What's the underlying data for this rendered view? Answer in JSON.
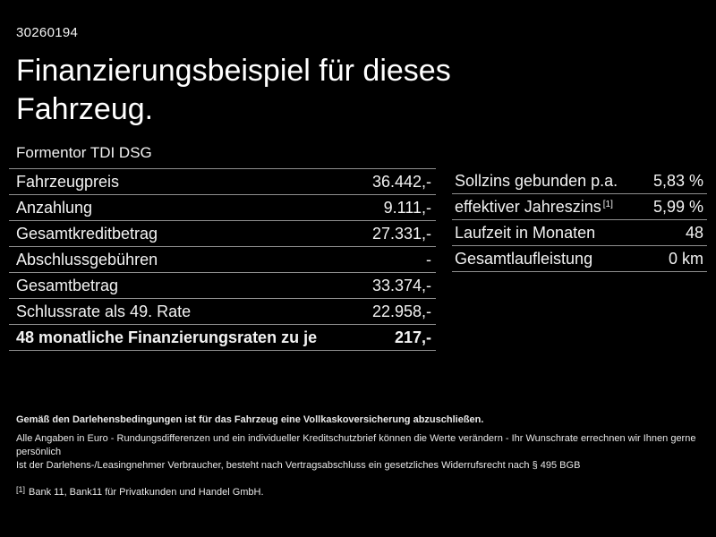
{
  "header": {
    "vehicle_id": "30260194",
    "title": "Finanzierungsbeispiel für dieses Fahrzeug.",
    "model": "Formentor TDI DSG"
  },
  "financing_table": {
    "rows": [
      {
        "label": "Fahrzeugpreis",
        "value": "36.442,-"
      },
      {
        "label": "Anzahlung",
        "value": "9.111,-"
      },
      {
        "label": "Gesamtkreditbetrag",
        "value": "27.331,-"
      },
      {
        "label": "Abschlussgebühren",
        "value": "-"
      },
      {
        "label": "Gesamtbetrag",
        "value": "33.374,-"
      },
      {
        "label": "Schlussrate als 49. Rate",
        "value": "22.958,-"
      },
      {
        "label": "48 monatliche Finanzierungsraten zu je",
        "value": "217,-"
      }
    ]
  },
  "conditions_table": {
    "rows": [
      {
        "label": "Sollzins gebunden p.a.",
        "sup": "",
        "value": "5,83 %"
      },
      {
        "label": "effektiver Jahreszins",
        "sup": "[1]",
        "value": "5,99 %"
      },
      {
        "label": "Laufzeit in Monaten",
        "sup": "",
        "value": "48"
      },
      {
        "label": "Gesamtlaufleistung",
        "sup": "",
        "value": "0 km"
      }
    ]
  },
  "footnotes": {
    "insurance_note": "Gemäß den Darlehensbedingungen ist für das Fahrzeug eine Vollkaskoversicherung abzuschließen.",
    "disclaimer1": "Alle Angaben in Euro - Rundungsdifferenzen und ein individueller Kreditschutzbrief können die Werte verändern - Ihr Wunschrate errechnen wir Ihnen gerne persönlich",
    "disclaimer2": "Ist der Darlehens-/Leasingnehmer Verbraucher, besteht nach Vertragsabschluss ein gesetzliches Widerrufsrecht nach § 495 BGB",
    "bank_ref_marker": "[1]",
    "bank_note": "Bank 11, Bank11 für Privatkunden und Handel GmbH."
  },
  "colors": {
    "background": "#000000",
    "text": "#ffffff",
    "divider": "#8f8f8f"
  }
}
